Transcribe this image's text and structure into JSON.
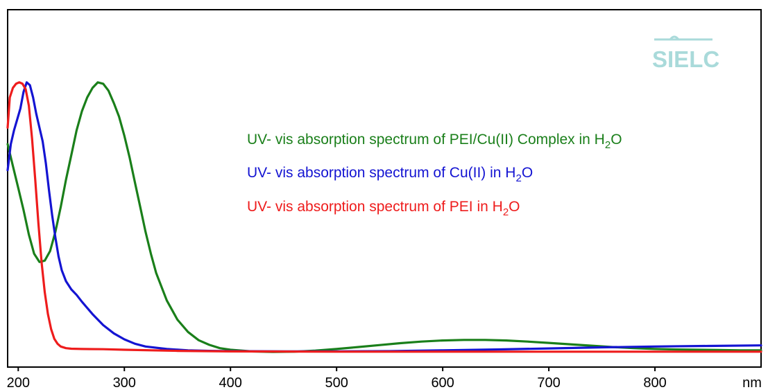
{
  "chart_data": {
    "type": "line",
    "xlabel": "nm",
    "ylabel": "",
    "xlim": [
      190,
      900
    ],
    "ylim": [
      0,
      1
    ],
    "grid": false,
    "x_ticks": [
      "200",
      "300",
      "400",
      "500",
      "600",
      "700",
      "800"
    ],
    "legend_position": "top-right",
    "logo_text": "SIELC",
    "series": [
      {
        "name": "UV- vis absorption spectrum of PEI/Cu(II) Complex in H2O",
        "legend": {
          "prefix": "UV- vis absorption spectrum of PEI/Cu(II) Complex in H",
          "sub": "2",
          "suffix": "O"
        },
        "color": "#1a7f1a",
        "points": [
          [
            190,
            0.76
          ],
          [
            195,
            0.68
          ],
          [
            200,
            0.6
          ],
          [
            205,
            0.52
          ],
          [
            210,
            0.43
          ],
          [
            215,
            0.36
          ],
          [
            220,
            0.33
          ],
          [
            225,
            0.335
          ],
          [
            230,
            0.37
          ],
          [
            235,
            0.44
          ],
          [
            240,
            0.53
          ],
          [
            245,
            0.63
          ],
          [
            250,
            0.72
          ],
          [
            255,
            0.81
          ],
          [
            260,
            0.88
          ],
          [
            265,
            0.93
          ],
          [
            270,
            0.965
          ],
          [
            275,
            0.985
          ],
          [
            280,
            0.98
          ],
          [
            285,
            0.955
          ],
          [
            290,
            0.91
          ],
          [
            295,
            0.86
          ],
          [
            300,
            0.79
          ],
          [
            305,
            0.71
          ],
          [
            310,
            0.62
          ],
          [
            315,
            0.53
          ],
          [
            320,
            0.44
          ],
          [
            325,
            0.36
          ],
          [
            330,
            0.29
          ],
          [
            340,
            0.19
          ],
          [
            350,
            0.12
          ],
          [
            360,
            0.075
          ],
          [
            370,
            0.045
          ],
          [
            380,
            0.028
          ],
          [
            390,
            0.016
          ],
          [
            400,
            0.01
          ],
          [
            420,
            0.004
          ],
          [
            440,
            0.002
          ],
          [
            460,
            0.003
          ],
          [
            480,
            0.007
          ],
          [
            500,
            0.013
          ],
          [
            520,
            0.02
          ],
          [
            540,
            0.027
          ],
          [
            560,
            0.034
          ],
          [
            580,
            0.04
          ],
          [
            600,
            0.044
          ],
          [
            620,
            0.046
          ],
          [
            640,
            0.046
          ],
          [
            660,
            0.044
          ],
          [
            680,
            0.04
          ],
          [
            700,
            0.035
          ],
          [
            720,
            0.03
          ],
          [
            740,
            0.025
          ],
          [
            760,
            0.02
          ],
          [
            780,
            0.016
          ],
          [
            800,
            0.013
          ],
          [
            820,
            0.011
          ],
          [
            840,
            0.01
          ],
          [
            860,
            0.009
          ],
          [
            880,
            0.008
          ],
          [
            900,
            0.008
          ]
        ]
      },
      {
        "name": "UV- vis absorption spectrum of Cu(II) in H2O",
        "legend": {
          "prefix": "UV- vis absorption spectrum of Cu(II) in H",
          "sub": "2",
          "suffix": "O"
        },
        "color": "#1414d2",
        "points": [
          [
            190,
            0.665
          ],
          [
            193,
            0.76
          ],
          [
            196,
            0.81
          ],
          [
            199,
            0.85
          ],
          [
            202,
            0.89
          ],
          [
            205,
            0.95
          ],
          [
            208,
            0.985
          ],
          [
            211,
            0.975
          ],
          [
            214,
            0.93
          ],
          [
            217,
            0.87
          ],
          [
            220,
            0.82
          ],
          [
            223,
            0.77
          ],
          [
            226,
            0.69
          ],
          [
            229,
            0.59
          ],
          [
            232,
            0.5
          ],
          [
            235,
            0.42
          ],
          [
            238,
            0.35
          ],
          [
            241,
            0.3
          ],
          [
            245,
            0.26
          ],
          [
            250,
            0.23
          ],
          [
            255,
            0.21
          ],
          [
            260,
            0.185
          ],
          [
            270,
            0.14
          ],
          [
            280,
            0.1
          ],
          [
            290,
            0.07
          ],
          [
            300,
            0.048
          ],
          [
            310,
            0.032
          ],
          [
            320,
            0.022
          ],
          [
            340,
            0.013
          ],
          [
            360,
            0.008
          ],
          [
            380,
            0.006
          ],
          [
            400,
            0.005
          ],
          [
            450,
            0.004
          ],
          [
            500,
            0.004
          ],
          [
            550,
            0.005
          ],
          [
            600,
            0.008
          ],
          [
            650,
            0.011
          ],
          [
            700,
            0.015
          ],
          [
            750,
            0.019
          ],
          [
            800,
            0.022
          ],
          [
            850,
            0.024
          ],
          [
            900,
            0.026
          ]
        ]
      },
      {
        "name": "UV- vis absorption spectrum of PEI in H2O",
        "legend": {
          "prefix": "UV- vis absorption spectrum of PEI in H",
          "sub": "2",
          "suffix": "O"
        },
        "color": "#ee1c1c",
        "points": [
          [
            190,
            0.82
          ],
          [
            192,
            0.93
          ],
          [
            195,
            0.965
          ],
          [
            198,
            0.98
          ],
          [
            201,
            0.985
          ],
          [
            204,
            0.98
          ],
          [
            207,
            0.96
          ],
          [
            210,
            0.9
          ],
          [
            213,
            0.78
          ],
          [
            216,
            0.63
          ],
          [
            219,
            0.47
          ],
          [
            222,
            0.33
          ],
          [
            225,
            0.22
          ],
          [
            228,
            0.14
          ],
          [
            231,
            0.085
          ],
          [
            234,
            0.05
          ],
          [
            237,
            0.032
          ],
          [
            240,
            0.022
          ],
          [
            245,
            0.016
          ],
          [
            250,
            0.014
          ],
          [
            260,
            0.013
          ],
          [
            280,
            0.012
          ],
          [
            300,
            0.01
          ],
          [
            350,
            0.006
          ],
          [
            400,
            0.004
          ],
          [
            500,
            0.003
          ],
          [
            600,
            0.003
          ],
          [
            700,
            0.003
          ],
          [
            800,
            0.003
          ],
          [
            900,
            0.003
          ]
        ]
      }
    ]
  }
}
